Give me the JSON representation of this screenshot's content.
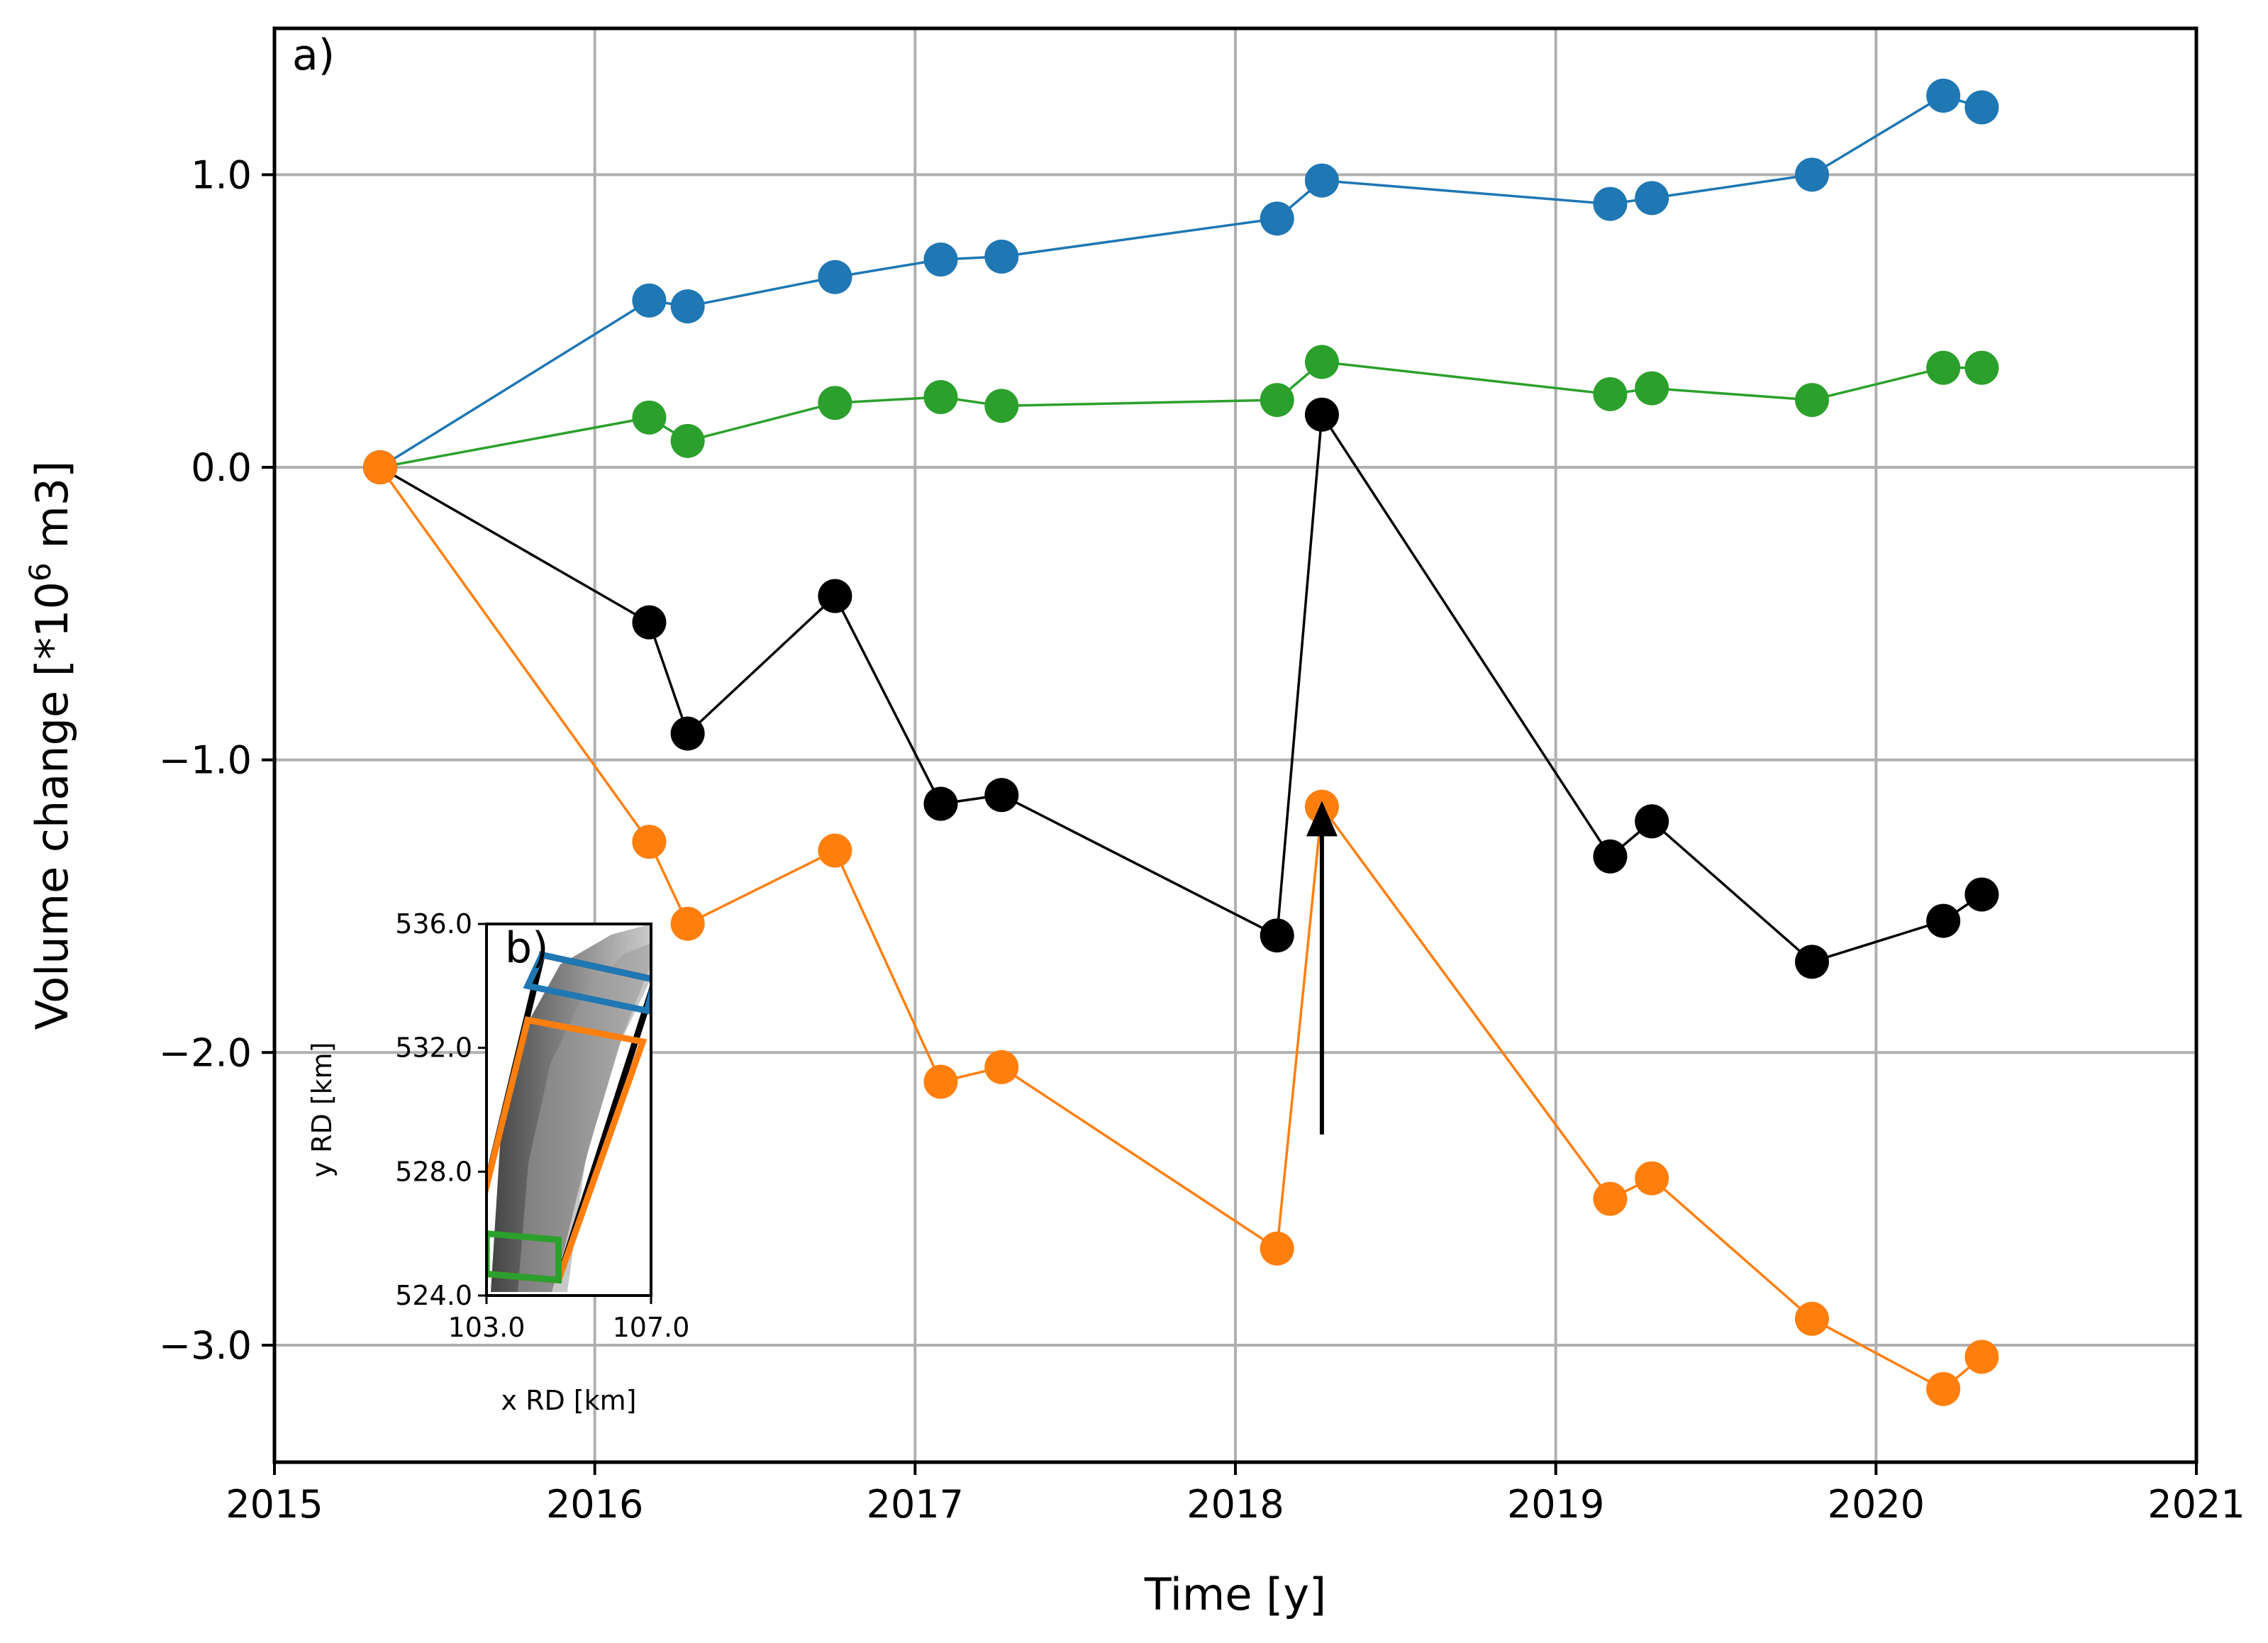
{
  "chart_data": [
    {
      "panel": "a)",
      "type": "line",
      "xlabel": "Time [y]",
      "ylabel": "Volume change [*10",
      "ylabel_sup": "6",
      "ylabel_end": " m3]",
      "xlim": [
        2015,
        2021
      ],
      "ylim": [
        -3.4,
        1.5
      ],
      "xticks": [
        2015,
        2016,
        2017,
        2018,
        2019,
        2020,
        2021
      ],
      "xtick_labels": [
        "2015",
        "2016",
        "2017",
        "2018",
        "2019",
        "2020",
        "2021"
      ],
      "yticks": [
        1.0,
        0.0,
        -1.0,
        -2.0,
        -3.0
      ],
      "ytick_labels": [
        "1.0",
        "0.0",
        "−1.0",
        "−2.0",
        "−3.0"
      ],
      "grid": true,
      "x": [
        2015.33,
        2016.17,
        2016.29,
        2016.75,
        2017.08,
        2017.27,
        2018.13,
        2018.27,
        2019.17,
        2019.3,
        2019.8,
        2020.21,
        2020.33
      ],
      "series": [
        {
          "name": "blue",
          "color": "#1f77b4",
          "values": [
            0.0,
            0.57,
            0.55,
            0.65,
            0.71,
            0.72,
            0.85,
            0.98,
            0.9,
            0.92,
            1.0,
            1.27,
            1.23
          ]
        },
        {
          "name": "green",
          "color": "#2ca02c",
          "values": [
            0.0,
            0.17,
            0.09,
            0.22,
            0.24,
            0.21,
            0.23,
            0.36,
            0.25,
            0.27,
            0.23,
            0.34,
            0.34
          ]
        },
        {
          "name": "black",
          "color": "#000000",
          "values": [
            0.0,
            -0.53,
            -0.91,
            -0.44,
            -1.15,
            -1.12,
            -1.6,
            0.18,
            -1.33,
            -1.21,
            -1.69,
            -1.55,
            -1.46
          ]
        },
        {
          "name": "orange",
          "color": "#ff7f0e",
          "values": [
            0.0,
            -1.28,
            -1.56,
            -1.31,
            -2.1,
            -2.05,
            -2.67,
            -1.16,
            -2.5,
            -2.43,
            -2.91,
            -3.15,
            -3.04
          ]
        }
      ],
      "annotations": [
        {
          "type": "arrow",
          "x": 2018.27,
          "y_from": -2.28,
          "y_to": -1.14,
          "color": "#000000"
        }
      ]
    },
    {
      "panel": "b)",
      "type": "map-inset",
      "xlabel": "x RD [km]",
      "ylabel": "y RD [km]",
      "xlim": [
        103.0,
        107.0
      ],
      "ylim": [
        524.0,
        536.0
      ],
      "xticks": [
        103.0,
        107.0
      ],
      "xtick_labels": [
        "103.0",
        "107.0"
      ],
      "yticks": [
        536.0,
        532.0,
        528.0,
        524.0
      ],
      "ytick_labels": [
        "536.0",
        "532.0",
        "528.0",
        "524.0"
      ],
      "polygons": [
        {
          "name": "black-area",
          "color": "#000000",
          "points": [
            [
              104.35,
              535.0
            ],
            [
              107.1,
              534.2
            ],
            [
              104.75,
              524.5
            ],
            [
              103.0,
              524.7
            ],
            [
              102.9,
              527.0
            ]
          ]
        },
        {
          "name": "blue-area",
          "color": "#1f77b4",
          "points": [
            [
              104.35,
              535.0
            ],
            [
              107.1,
              534.2
            ],
            [
              106.9,
              533.2
            ],
            [
              104.0,
              534.0
            ]
          ]
        },
        {
          "name": "orange-area",
          "color": "#ff7f0e",
          "points": [
            [
              104.0,
              532.9
            ],
            [
              106.8,
              532.2
            ],
            [
              104.75,
              524.5
            ],
            [
              103.0,
              524.7
            ],
            [
              102.9,
              527.0
            ]
          ]
        },
        {
          "name": "green-area",
          "color": "#2ca02c",
          "points": [
            [
              103.0,
              526.0
            ],
            [
              104.75,
              525.8
            ],
            [
              104.75,
              524.5
            ],
            [
              103.0,
              524.7
            ]
          ]
        }
      ]
    }
  ]
}
